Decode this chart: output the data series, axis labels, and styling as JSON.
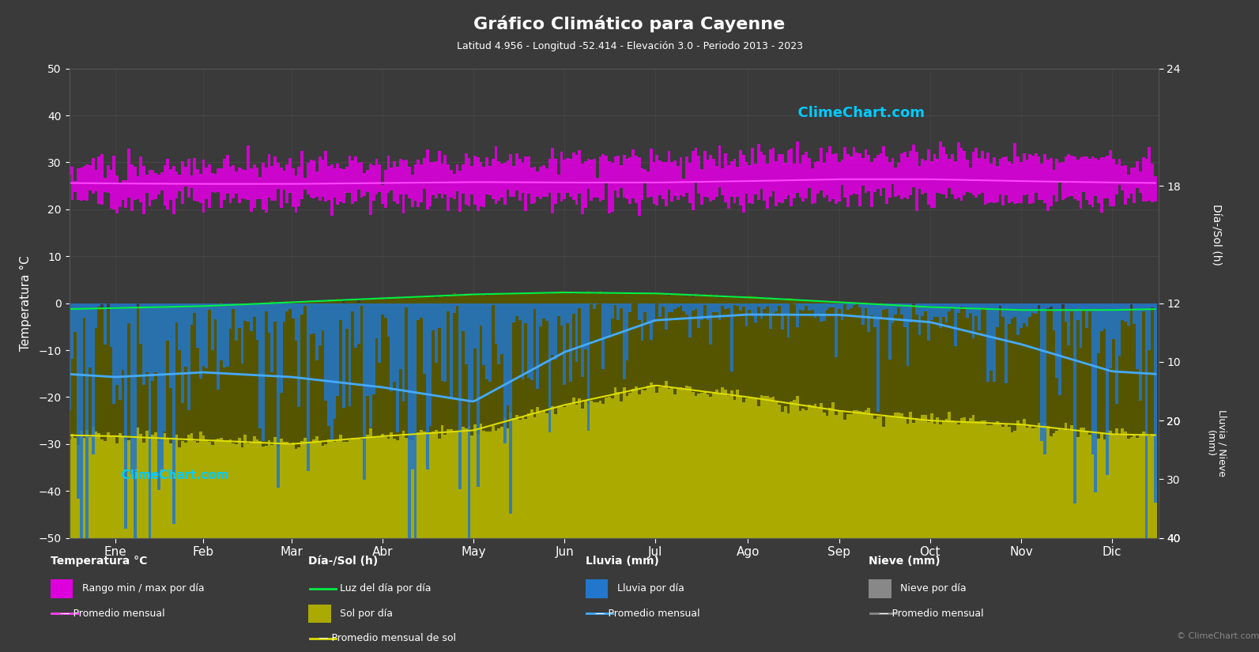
{
  "title": "Gráfico Climático para Cayenne",
  "subtitle": "Latitud 4.956 - Longitud -52.414 - Elevación 3.0 - Periodo 2013 - 2023",
  "months": [
    "Ene",
    "Feb",
    "Mar",
    "Abr",
    "May",
    "Jun",
    "Jul",
    "Ago",
    "Sep",
    "Oct",
    "Nov",
    "Dic"
  ],
  "background_color": "#3a3a3a",
  "grid_color": "#4a4a4a",
  "text_color": "#ffffff",
  "temp_ylim": [
    -50,
    50
  ],
  "temp_avg_monthly": [
    25.5,
    25.4,
    25.4,
    25.6,
    25.8,
    25.7,
    25.7,
    26.0,
    26.4,
    26.4,
    26.0,
    25.7
  ],
  "temp_max_monthly": [
    29.5,
    29.4,
    29.5,
    30.0,
    30.3,
    30.2,
    30.5,
    31.0,
    31.5,
    31.4,
    30.8,
    29.8
  ],
  "temp_min_monthly": [
    22.0,
    22.0,
    22.0,
    22.2,
    22.4,
    22.2,
    22.0,
    22.2,
    22.8,
    22.8,
    22.4,
    22.0
  ],
  "daylight_monthly": [
    11.75,
    11.85,
    12.05,
    12.25,
    12.45,
    12.55,
    12.5,
    12.3,
    12.05,
    11.8,
    11.65,
    11.65
  ],
  "sun_monthly": [
    5.2,
    5.0,
    4.8,
    5.2,
    5.5,
    6.8,
    7.8,
    7.2,
    6.5,
    6.0,
    5.8,
    5.3
  ],
  "rain_monthly_mm": [
    390,
    330,
    390,
    430,
    520,
    250,
    90,
    60,
    60,
    100,
    210,
    360
  ],
  "rain_daily_scale": 40,
  "temp_bar_color": "#dd00dd",
  "daylight_color": "#00ee44",
  "sun_bar_color": "#aaaa00",
  "dark_bar_color": "#555500",
  "rain_bar_color": "#2277cc",
  "rain_line_color": "#44aaff",
  "temp_line_color": "#ff44ff",
  "sun_line_color": "#dddd00",
  "watermark_color": "#00ccff",
  "copyright_color": "#888888"
}
